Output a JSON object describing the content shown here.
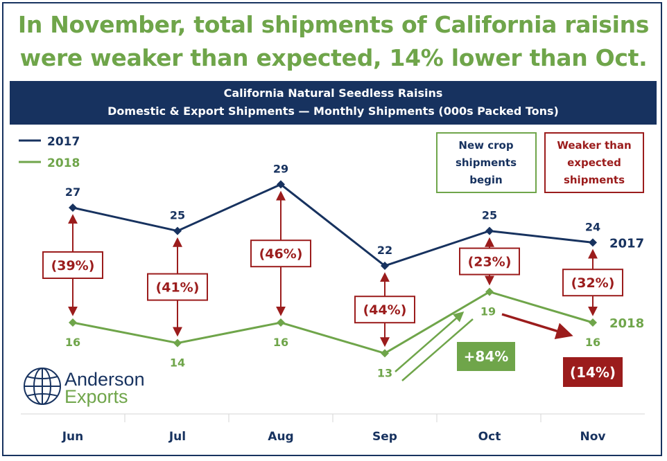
{
  "headline": {
    "line1": "In November, total shipments of California raisins",
    "line2": "were weaker than expected, 14% lower than Oct."
  },
  "banner": {
    "line1": "California Natural Seedless Raisins",
    "line2": "Domestic & Export Shipments — Monthly Shipments (000s Packed Tons)"
  },
  "legend": {
    "series1": "2017",
    "series2": "2018"
  },
  "callouts": {
    "new_crop": [
      "New crop",
      "shipments",
      "begin"
    ],
    "weaker": [
      "Weaker than",
      "expected",
      "shipments"
    ]
  },
  "growth_badge": "+84%",
  "decline_badge": "(14%)",
  "logo": {
    "line1": "Anderson",
    "line2": "Exports"
  },
  "colors": {
    "navy": "#17325f",
    "green": "#6fa54a",
    "red": "#9b1c1c",
    "grid": "#d6d6d6"
  },
  "chart_data": {
    "type": "line",
    "title": "California Natural Seedless Raisins",
    "subtitle": "Domestic & Export Shipments — Monthly Shipments (000s Packed Tons)",
    "categories": [
      "Jun",
      "Jul",
      "Aug",
      "Sep",
      "Oct",
      "Nov"
    ],
    "series": [
      {
        "name": "2017",
        "values": [
          27,
          25,
          29,
          22,
          25,
          24
        ],
        "labels": [
          "27",
          "25",
          "29",
          "22",
          "25",
          "24"
        ]
      },
      {
        "name": "2018",
        "values": [
          16,
          14,
          16,
          13,
          19,
          16
        ],
        "labels": [
          "16",
          "14",
          "16",
          "13",
          "19",
          "16"
        ]
      }
    ],
    "differences": [
      "(39%)",
      "(41%)",
      "(46%)",
      "(44%)",
      "(23%)",
      "(32%)"
    ],
    "end_labels": [
      "2017",
      "2018"
    ],
    "legend_position": "top-left",
    "grid": false,
    "xlabel": "",
    "ylabel": ""
  }
}
